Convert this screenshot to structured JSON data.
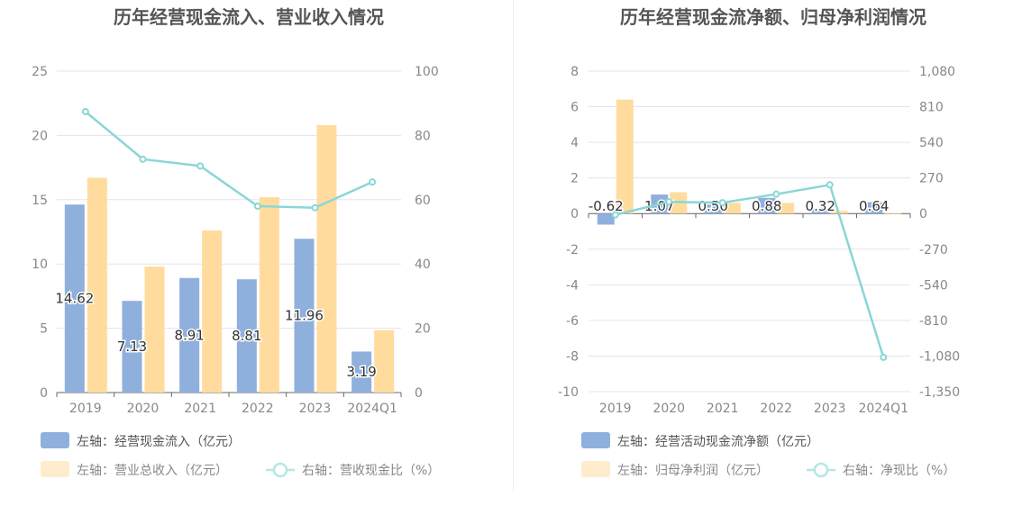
{
  "chart_data": [
    {
      "type": "bar",
      "title": "历年经营现金流入、营业收入情况",
      "categories": [
        "2019",
        "2020",
        "2021",
        "2022",
        "2023",
        "2024Q1"
      ],
      "left_axis": {
        "ylim": [
          0,
          25
        ],
        "ticks": [
          "0",
          "5",
          "10",
          "15",
          "20",
          "25"
        ]
      },
      "right_axis": {
        "ylim": [
          0,
          100
        ],
        "ticks": [
          "0",
          "20",
          "40",
          "60",
          "80",
          "100"
        ]
      },
      "series": [
        {
          "name": "左轴：经营现金流入（亿元）",
          "kind": "bar",
          "axis": "left",
          "color": "#8fb0dd",
          "values": [
            14.62,
            7.13,
            8.91,
            8.81,
            11.96,
            3.19
          ],
          "labels": [
            "14.62",
            "7.13",
            "8.91",
            "8.81",
            "11.96",
            "3.19"
          ]
        },
        {
          "name": "左轴：营业总收入（亿元）",
          "kind": "bar",
          "axis": "left",
          "color": "#ffdc9e",
          "values": [
            16.7,
            9.8,
            12.6,
            15.2,
            20.8,
            4.85
          ]
        },
        {
          "name": "右轴：营收现金比（%）",
          "kind": "line",
          "axis": "right",
          "color": "#8ad6d6",
          "values": [
            87.4,
            72.6,
            70.5,
            58.0,
            57.5,
            65.5
          ]
        }
      ],
      "grid": true,
      "legend_position": "bottom-left"
    },
    {
      "type": "bar",
      "title": "历年经营现金流净额、归母净利润情况",
      "categories": [
        "2019",
        "2020",
        "2021",
        "2022",
        "2023",
        "2024Q1"
      ],
      "left_axis": {
        "ylim": [
          -10,
          8
        ],
        "ticks": [
          "-10",
          "-8",
          "-6",
          "-4",
          "-2",
          "0",
          "2",
          "4",
          "6",
          "8"
        ]
      },
      "right_axis": {
        "ylim": [
          -1350,
          1080
        ],
        "ticks": [
          "-1,350",
          "-1,080",
          "-810",
          "-540",
          "-270",
          "0",
          "270",
          "540",
          "810",
          "1,080"
        ]
      },
      "series": [
        {
          "name": "左轴：经营活动现金流净额（亿元）",
          "kind": "bar",
          "axis": "left",
          "color": "#8fb0dd",
          "values": [
            -0.62,
            1.07,
            0.5,
            0.88,
            0.32,
            0.64
          ],
          "labels": [
            "-0.62",
            "1.07",
            "0.50",
            "0.88",
            "0.32",
            "0.64"
          ]
        },
        {
          "name": "左轴：归母净利润（亿元）",
          "kind": "bar",
          "axis": "left",
          "color": "#ffdc9e",
          "values": [
            6.4,
            1.2,
            0.6,
            0.6,
            0.15,
            0.04
          ]
        },
        {
          "name": "右轴：净现比（%）",
          "kind": "line",
          "axis": "right",
          "color": "#8ad6d6",
          "values": [
            -9.7,
            89,
            83,
            147,
            218,
            -1090
          ]
        }
      ],
      "grid": true,
      "legend_position": "bottom-left"
    }
  ]
}
